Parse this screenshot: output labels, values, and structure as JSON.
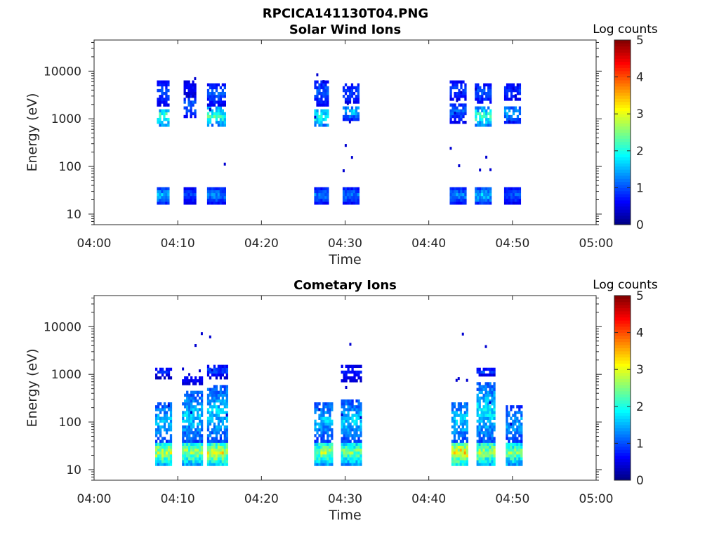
{
  "figure_title": "RPCICA141130T04.PNG",
  "chart_data": [
    {
      "type": "heatmap",
      "title": "Solar Wind Ions",
      "xlabel": "Time",
      "ylabel": "Energy (eV)",
      "xlim": [
        "04:00",
        "05:00"
      ],
      "x_ticks": [
        "04:00",
        "04:10",
        "04:20",
        "04:30",
        "04:40",
        "04:50",
        "05:00"
      ],
      "y_scale": "log",
      "ylim": [
        6,
        45000
      ],
      "y_ticks": [
        "10",
        "100",
        "1000",
        "10000"
      ],
      "colorbar": {
        "label": "Log counts",
        "min": 0,
        "max": 5,
        "ticks": [
          "0",
          "1",
          "2",
          "3",
          "4",
          "5"
        ],
        "colormap": "jet"
      },
      "bursts": [
        {
          "t_start": 7.5,
          "t_end": 9.0,
          "bands": [
            {
              "e_low": 17,
              "e_high": 32,
              "peak": 1.9
            },
            {
              "e_low": 700,
              "e_high": 1500,
              "peak": 2.8
            },
            {
              "e_low": 2000,
              "e_high": 6000,
              "peak": 1.2
            }
          ]
        },
        {
          "t_start": 10.7,
          "t_end": 12.0,
          "bands": [
            {
              "e_low": 17,
              "e_high": 32,
              "peak": 1.2
            },
            {
              "e_low": 1100,
              "e_high": 2800,
              "peak": 1.4
            },
            {
              "e_low": 3000,
              "e_high": 6000,
              "peak": 0.8
            }
          ]
        },
        {
          "t_start": 13.5,
          "t_end": 15.7,
          "bands": [
            {
              "e_low": 17,
              "e_high": 32,
              "peak": 1.6
            },
            {
              "e_low": 700,
              "e_high": 1600,
              "peak": 2.6
            },
            {
              "e_low": 2000,
              "e_high": 5000,
              "peak": 1.3
            }
          ]
        },
        {
          "t_start": 26.3,
          "t_end": 28.0,
          "bands": [
            {
              "e_low": 17,
              "e_high": 32,
              "peak": 1.5
            },
            {
              "e_low": 700,
              "e_high": 1500,
              "peak": 2.5
            },
            {
              "e_low": 2000,
              "e_high": 6000,
              "peak": 1.3
            }
          ]
        },
        {
          "t_start": 29.7,
          "t_end": 31.5,
          "bands": [
            {
              "e_low": 17,
              "e_high": 32,
              "peak": 1.5
            },
            {
              "e_low": 1000,
              "e_high": 1800,
              "peak": 2.0
            },
            {
              "e_low": 2200,
              "e_high": 5500,
              "peak": 1.2
            }
          ]
        },
        {
          "t_start": 42.5,
          "t_end": 44.5,
          "bands": [
            {
              "e_low": 17,
              "e_high": 32,
              "peak": 1.6
            },
            {
              "e_low": 900,
              "e_high": 2000,
              "peak": 1.4
            },
            {
              "e_low": 2500,
              "e_high": 6000,
              "peak": 1.1
            }
          ]
        },
        {
          "t_start": 45.5,
          "t_end": 47.5,
          "bands": [
            {
              "e_low": 17,
              "e_high": 32,
              "peak": 2.0
            },
            {
              "e_low": 700,
              "e_high": 1600,
              "peak": 2.6
            },
            {
              "e_low": 2200,
              "e_high": 5000,
              "peak": 1.3
            }
          ]
        },
        {
          "t_start": 49.0,
          "t_end": 51.0,
          "bands": [
            {
              "e_low": 17,
              "e_high": 32,
              "peak": 1.3
            },
            {
              "e_low": 900,
              "e_high": 1800,
              "peak": 1.8
            },
            {
              "e_low": 2500,
              "e_high": 5000,
              "peak": 1.1
            }
          ]
        }
      ]
    },
    {
      "type": "heatmap",
      "title": "Cometary Ions",
      "xlabel": "Time",
      "ylabel": "Energy (eV)",
      "xlim": [
        "04:00",
        "05:00"
      ],
      "x_ticks": [
        "04:00",
        "04:10",
        "04:20",
        "04:30",
        "04:40",
        "04:50",
        "05:00"
      ],
      "y_scale": "log",
      "ylim": [
        6,
        45000
      ],
      "y_ticks": [
        "10",
        "100",
        "1000",
        "10000"
      ],
      "colorbar": {
        "label": "Log counts",
        "min": 0,
        "max": 5,
        "ticks": [
          "0",
          "1",
          "2",
          "3",
          "4",
          "5"
        ],
        "colormap": "jet"
      },
      "bursts": [
        {
          "t_start": 7.3,
          "t_end": 9.2,
          "bands": [
            {
              "e_low": 13,
              "e_high": 36,
              "peak": 3.4
            },
            {
              "e_low": 40,
              "e_high": 250,
              "peak": 1.9
            },
            {
              "e_low": 900,
              "e_high": 1300,
              "peak": 1.0
            }
          ]
        },
        {
          "t_start": 10.5,
          "t_end": 12.8,
          "bands": [
            {
              "e_low": 13,
              "e_high": 36,
              "peak": 3.2
            },
            {
              "e_low": 40,
              "e_high": 400,
              "peak": 2.0
            },
            {
              "e_low": 600,
              "e_high": 900,
              "peak": 0.8
            }
          ]
        },
        {
          "t_start": 13.5,
          "t_end": 16.0,
          "bands": [
            {
              "e_low": 13,
              "e_high": 36,
              "peak": 3.6
            },
            {
              "e_low": 40,
              "e_high": 550,
              "peak": 2.0
            },
            {
              "e_low": 900,
              "e_high": 1400,
              "peak": 1.2
            }
          ]
        },
        {
          "t_start": 26.3,
          "t_end": 28.5,
          "bands": [
            {
              "e_low": 13,
              "e_high": 36,
              "peak": 3.2
            },
            {
              "e_low": 40,
              "e_high": 250,
              "peak": 1.9
            }
          ]
        },
        {
          "t_start": 29.5,
          "t_end": 32.0,
          "bands": [
            {
              "e_low": 13,
              "e_high": 36,
              "peak": 3.0
            },
            {
              "e_low": 40,
              "e_high": 260,
              "peak": 2.0
            },
            {
              "e_low": 700,
              "e_high": 1500,
              "peak": 0.9
            }
          ]
        },
        {
          "t_start": 42.7,
          "t_end": 44.7,
          "bands": [
            {
              "e_low": 13,
              "e_high": 36,
              "peak": 3.9
            },
            {
              "e_low": 40,
              "e_high": 250,
              "peak": 2.0
            }
          ]
        },
        {
          "t_start": 45.7,
          "t_end": 47.9,
          "bands": [
            {
              "e_low": 13,
              "e_high": 36,
              "peak": 3.3
            },
            {
              "e_low": 40,
              "e_high": 600,
              "peak": 2.1
            },
            {
              "e_low": 950,
              "e_high": 1200,
              "peak": 1.3
            }
          ]
        },
        {
          "t_start": 49.2,
          "t_end": 51.0,
          "bands": [
            {
              "e_low": 13,
              "e_high": 36,
              "peak": 3.0
            },
            {
              "e_low": 40,
              "e_high": 200,
              "peak": 1.8
            }
          ]
        }
      ]
    }
  ]
}
